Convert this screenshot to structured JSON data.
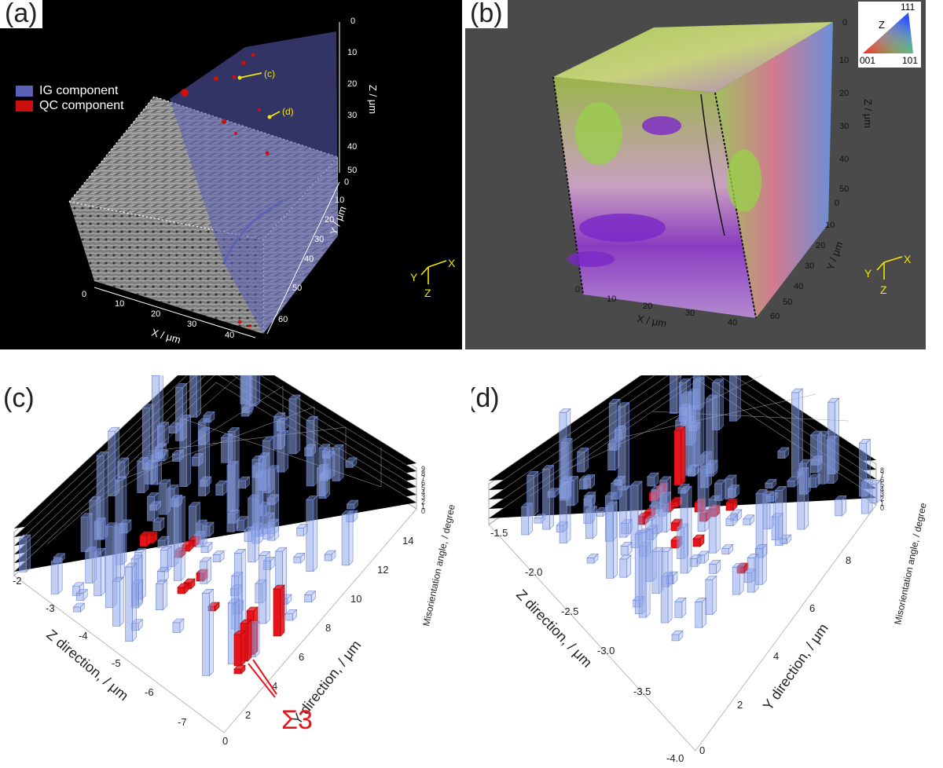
{
  "panel_a": {
    "label": "(a)",
    "legend": [
      {
        "name": "IG component",
        "color": "#5a5fb8"
      },
      {
        "name": "QC component",
        "color": "#cc1010"
      }
    ],
    "callouts": [
      "(c)",
      "(d)"
    ],
    "x_axis": {
      "label": "X / μm",
      "ticks": [
        "0",
        "10",
        "20",
        "30",
        "40"
      ]
    },
    "y_axis": {
      "label": "Y / μm",
      "ticks": [
        "0",
        "10",
        "20",
        "30",
        "40",
        "50",
        "60"
      ]
    },
    "z_axis": {
      "label": "Z / μm",
      "ticks": [
        "0",
        "10",
        "20",
        "30",
        "40",
        "50"
      ]
    },
    "triad": {
      "x": "X",
      "y": "Y",
      "z": "Z"
    }
  },
  "panel_b": {
    "label": "(b)",
    "ipf": {
      "axis": "Z",
      "corners": [
        "111",
        "001",
        "101"
      ]
    },
    "x_axis": {
      "label": "X / μm",
      "ticks": [
        "0",
        "10",
        "20",
        "30",
        "40"
      ]
    },
    "y_axis": {
      "label": "Y / μm",
      "ticks": [
        "0",
        "10",
        "20",
        "30",
        "40",
        "50",
        "60"
      ]
    },
    "z_axis": {
      "label": "Z / μm",
      "ticks": [
        "0",
        "10",
        "20",
        "30",
        "40",
        "50"
      ]
    },
    "triad": {
      "x": "X",
      "y": "Y",
      "z": "Z"
    }
  },
  "panel_c": {
    "label": "(c)",
    "z_axis": {
      "label": "Z direction, / μm",
      "ticks": [
        "-2",
        "-3",
        "-4",
        "-5",
        "-6",
        "-7"
      ]
    },
    "y_axis": {
      "label": "Y direction, / μm",
      "ticks": [
        "0",
        "2",
        "4",
        "6",
        "8",
        "10",
        "12",
        "14"
      ]
    },
    "v_axis": {
      "label": "Misorientation angle, / degree",
      "ticks": [
        "0",
        "1",
        "2",
        "3",
        "4",
        "5",
        "6",
        "7",
        "8",
        "9"
      ]
    },
    "annotation": "Σ3",
    "colors": {
      "highlight": "#e8141b",
      "base": "#8fa6e8"
    }
  },
  "panel_d": {
    "label": "(d)",
    "z_axis": {
      "label": "Z direction, / μm",
      "ticks": [
        "-1.5",
        "-2.0",
        "-2.5",
        "-3.0",
        "-3.5",
        "-4.0"
      ]
    },
    "y_axis": {
      "label": "Y direction, / μm",
      "ticks": [
        "0",
        "2",
        "4",
        "6",
        "8"
      ]
    },
    "v_axis": {
      "label": "Misorientation angle, / degree",
      "ticks": [
        "0",
        "1",
        "2",
        "3",
        "4",
        "5",
        "6",
        "7",
        "8"
      ]
    },
    "colors": {
      "highlight": "#e8141b",
      "base": "#8fa6e8"
    }
  }
}
